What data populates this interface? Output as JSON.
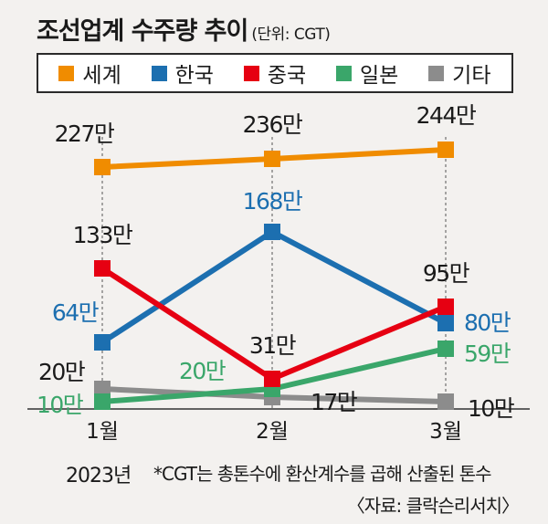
{
  "title": "조선업계 수주량 추이",
  "unit_label": "(단위: CGT)",
  "year_label": "2023년",
  "footnote": "*CGT는 총톤수에 환산계수를 곱해 산출된 톤수",
  "source": "〈자료: 클락슨리서치〉",
  "chart_data": {
    "type": "line",
    "x": [
      "1월",
      "2월",
      "3월"
    ],
    "series": [
      {
        "name": "세계",
        "color": "#f08c00",
        "values": [
          227,
          236,
          244
        ],
        "labels": [
          "227만",
          "236만",
          "244만"
        ],
        "label_color": "#1a1a1a"
      },
      {
        "name": "한국",
        "color": "#1c6fb0",
        "values": [
          64,
          168,
          80
        ],
        "labels": [
          "64만",
          "168만",
          "80만"
        ],
        "label_color": "#1c6fb0"
      },
      {
        "name": "중국",
        "color": "#e60012",
        "values": [
          133,
          31,
          95
        ],
        "labels": [
          "133만",
          "31만",
          "95만"
        ],
        "label_color": "#1a1a1a"
      },
      {
        "name": "일본",
        "color": "#3aa66a",
        "values": [
          10,
          20,
          59
        ],
        "labels": [
          "10만",
          "20만",
          "59만"
        ],
        "label_color": "#3aa66a"
      },
      {
        "name": "기타",
        "color": "#8c8c8c",
        "values": [
          20,
          17,
          10
        ],
        "labels": [
          "20만",
          "17만",
          "10만"
        ],
        "label_color": "#1a1a1a"
      }
    ]
  }
}
